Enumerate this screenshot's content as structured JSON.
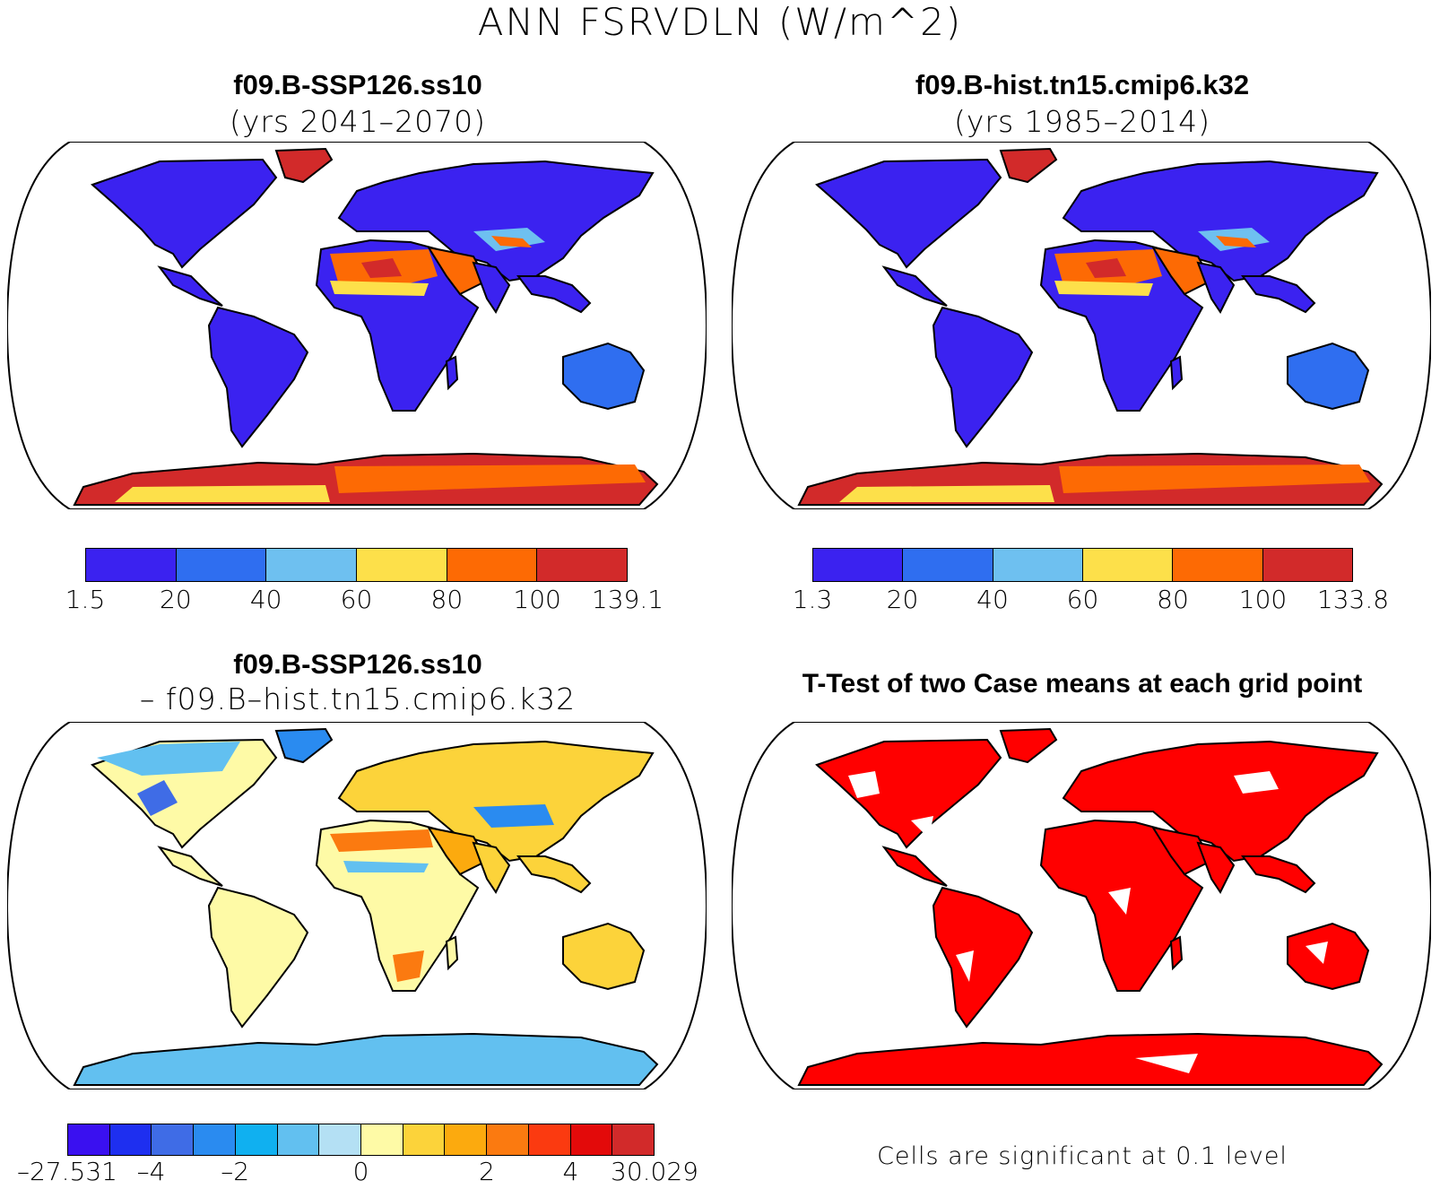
{
  "title": "ANN FSRVDLN (W/m^2)",
  "panels": {
    "p1": {
      "title": "f09.B-SSP126.ss10",
      "subtitle": "(yrs 2041–2070)",
      "colorbar": {
        "colors": [
          "#3b22f0",
          "#2f6ef0",
          "#6ec0f0",
          "#fde04a",
          "#fd6a04",
          "#d22a2a"
        ],
        "labels": [
          "1.5",
          "20",
          "40",
          "60",
          "80",
          "100",
          "139.1"
        ]
      }
    },
    "p2": {
      "title": "f09.B-hist.tn15.cmip6.k32",
      "subtitle": "(yrs 1985–2014)",
      "colorbar": {
        "colors": [
          "#3b22f0",
          "#2f6ef0",
          "#6ec0f0",
          "#fde04a",
          "#fd6a04",
          "#d22a2a"
        ],
        "labels": [
          "1.3",
          "20",
          "40",
          "60",
          "80",
          "100",
          "133.8"
        ]
      }
    },
    "p3": {
      "title": "f09.B-SSP126.ss10",
      "subtitle": "– f09.B–hist.tn15.cmip6.k32",
      "colorbar": {
        "colors": [
          "#3a10f0",
          "#1e2ff0",
          "#3f6ce6",
          "#2a8bf0",
          "#10b0f0",
          "#62c0f0",
          "#b4e0f4",
          "#fefaa6",
          "#fcd33a",
          "#fcaa0e",
          "#fb7a10",
          "#fb3a10",
          "#e30a0a",
          "#d22a2a"
        ],
        "labels": [
          "–27.531",
          "–4",
          "–2",
          "0",
          "2",
          "4",
          "30.029"
        ]
      }
    },
    "p4": {
      "title": "T-Test of two Case means at each grid point",
      "note": "Cells are significant at 0.1 level",
      "significant_color": "#ff0000"
    }
  }
}
